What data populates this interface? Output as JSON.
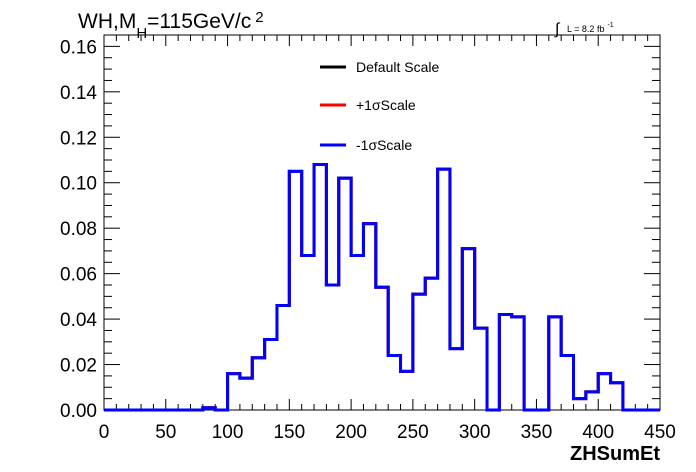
{
  "chart_data": {
    "type": "line",
    "step": true,
    "title_parts": {
      "main": "WH,M",
      "subscript": "H",
      "after": "=115GeV/c",
      "superscript": "2"
    },
    "lumi": {
      "integral_sign": "∫",
      "text": "L = 8.2 fb",
      "superscript": "-1"
    },
    "xlabel": "ZHSumEt",
    "ylabel": "",
    "xlim": [
      0,
      450
    ],
    "ylim": [
      0,
      0.165
    ],
    "bin_width": 10,
    "x_ticks": [
      0,
      50,
      100,
      150,
      200,
      250,
      300,
      350,
      400,
      450
    ],
    "x_tick_labels": [
      "0",
      "50",
      "100",
      "150",
      "200",
      "250",
      "300",
      "350",
      "400",
      "450"
    ],
    "y_ticks": [
      0,
      0.02,
      0.04,
      0.06,
      0.08,
      0.1,
      0.12,
      0.14,
      0.16
    ],
    "y_tick_labels": [
      "0.00",
      "0.02",
      "0.04",
      "0.06",
      "0.08",
      "0.10",
      "0.12",
      "0.14",
      "0.16"
    ],
    "legend_position": "top-center",
    "series": [
      {
        "name": "Default Scale",
        "color": "#000000",
        "values": [
          0,
          0,
          0,
          0,
          0,
          0,
          0,
          0,
          0.001,
          0,
          0.016,
          0.014,
          0.023,
          0.031,
          0.046,
          0.105,
          0.068,
          0.108,
          0.055,
          0.102,
          0.068,
          0.082,
          0.054,
          0.024,
          0.017,
          0.051,
          0.058,
          0.106,
          0.027,
          0.071,
          0.036,
          0,
          0.042,
          0.041,
          0,
          0,
          0.041,
          0.024,
          0.005,
          0.008,
          0.016,
          0.012,
          0,
          0,
          0
        ]
      },
      {
        "name": "+1σScale",
        "color": "#ff0000",
        "values": [
          0,
          0,
          0,
          0,
          0,
          0,
          0,
          0,
          0.001,
          0,
          0.016,
          0.014,
          0.023,
          0.031,
          0.046,
          0.105,
          0.068,
          0.108,
          0.055,
          0.102,
          0.068,
          0.082,
          0.054,
          0.024,
          0.017,
          0.051,
          0.058,
          0.106,
          0.027,
          0.071,
          0.036,
          0,
          0.042,
          0.041,
          0,
          0,
          0.041,
          0.024,
          0.005,
          0.008,
          0.016,
          0.012,
          0,
          0,
          0
        ]
      },
      {
        "name": "-1σScale",
        "color": "#0000ff",
        "values": [
          0,
          0,
          0,
          0,
          0,
          0,
          0,
          0,
          0.001,
          0,
          0.016,
          0.014,
          0.023,
          0.031,
          0.046,
          0.105,
          0.068,
          0.108,
          0.055,
          0.102,
          0.068,
          0.082,
          0.054,
          0.024,
          0.017,
          0.051,
          0.058,
          0.106,
          0.027,
          0.071,
          0.036,
          0,
          0.042,
          0.041,
          0,
          0,
          0.041,
          0.024,
          0.005,
          0.008,
          0.016,
          0.012,
          0,
          0,
          0
        ]
      }
    ]
  }
}
